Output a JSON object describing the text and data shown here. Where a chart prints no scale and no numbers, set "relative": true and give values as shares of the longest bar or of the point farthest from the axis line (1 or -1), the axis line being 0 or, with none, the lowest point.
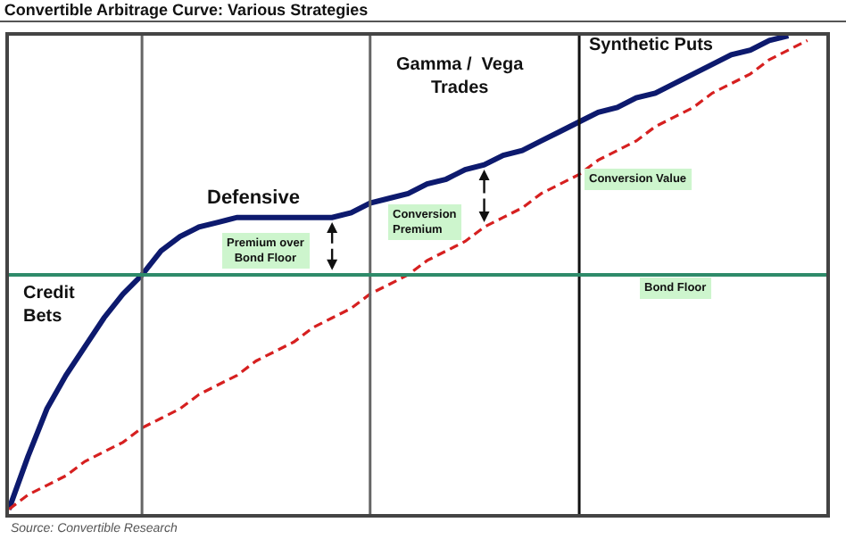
{
  "chart_data": {
    "type": "line",
    "title": "Convertible Arbitrage Curve: Various Strategies",
    "relative": true,
    "marker": "none",
    "categories": [
      null,
      null,
      null,
      null,
      null,
      null,
      null,
      null,
      null,
      null,
      null,
      null,
      null,
      null,
      null,
      null,
      null,
      null,
      null,
      null,
      null,
      null,
      null,
      null,
      null,
      null,
      null,
      null,
      null,
      null,
      null,
      null,
      null,
      null,
      null,
      null,
      null,
      null,
      null,
      null,
      null,
      null,
      null,
      null
    ],
    "series": [
      {
        "color": "#0d1a6e",
        "line_style": "solid",
        "values": [
          0.01,
          0.12,
          0.22,
          0.29,
          0.35,
          0.41,
          0.46,
          0.5,
          0.55,
          0.58,
          0.6,
          0.61,
          0.62,
          0.62,
          0.62,
          0.62,
          0.62,
          0.62,
          0.63,
          0.65,
          0.66,
          0.67,
          0.69,
          0.7,
          0.72,
          0.73,
          0.75,
          0.76,
          0.78,
          0.8,
          0.82,
          0.84,
          0.85,
          0.87,
          0.88,
          0.9,
          0.92,
          0.94,
          0.96,
          0.97,
          0.99,
          1.0,
          null,
          null
        ]
      },
      {
        "color": "#d62020",
        "line_style": "dashed",
        "values": [
          0.01,
          0.04,
          0.06,
          0.08,
          0.11,
          0.13,
          0.15,
          0.18,
          0.2,
          0.22,
          0.25,
          0.27,
          0.29,
          0.32,
          0.34,
          0.36,
          0.39,
          0.41,
          0.43,
          0.46,
          0.48,
          0.5,
          0.53,
          0.55,
          0.57,
          0.6,
          0.62,
          0.64,
          0.67,
          0.69,
          0.71,
          0.74,
          0.76,
          0.78,
          0.81,
          0.83,
          0.85,
          0.88,
          0.9,
          0.92,
          0.95,
          0.97,
          0.99,
          null
        ]
      }
    ],
    "ref_lines": [
      {
        "axis": "y",
        "value": 0.5,
        "color": "#2e8b6a"
      }
    ],
    "annotations": [
      "Credit\nBets",
      "Defensive",
      "Gamma /  Vega\nTrades",
      "Synthetic Puts",
      "Premium over\nBond Floor",
      "Conversion\nPremium",
      "Conversion Value",
      "Bond Floor",
      "Source: Convertible Research"
    ]
  }
}
